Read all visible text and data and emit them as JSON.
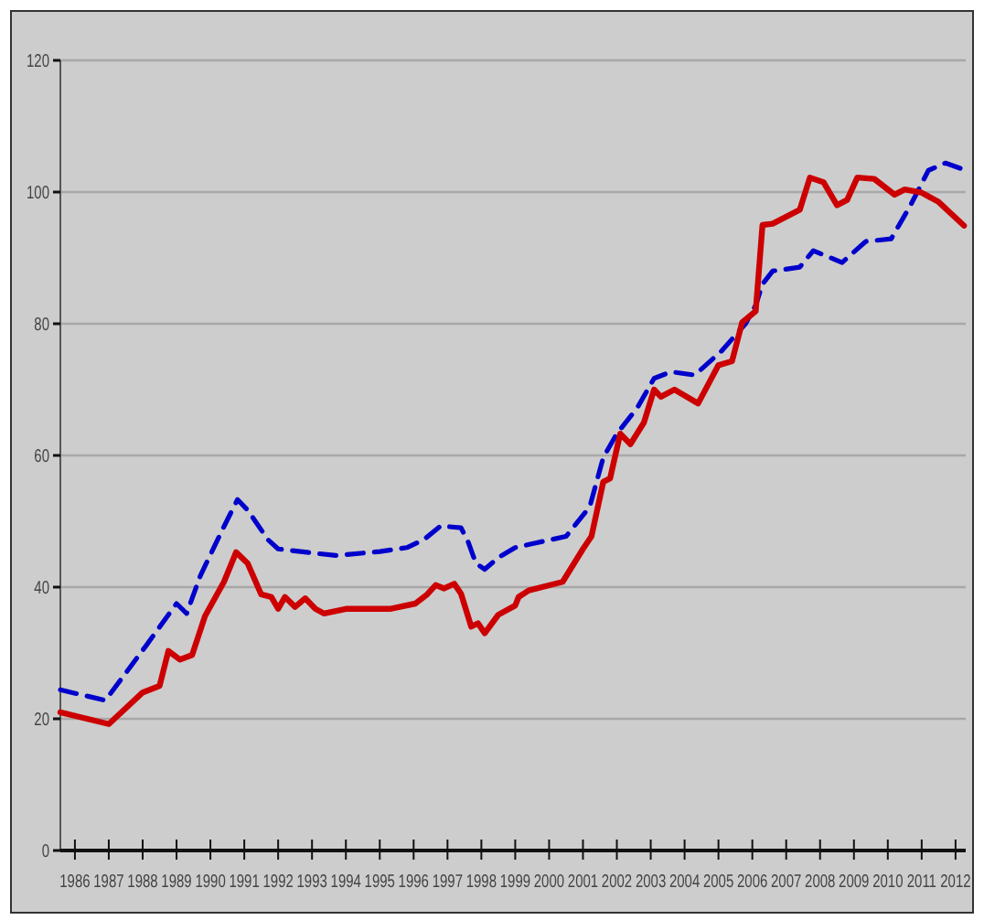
{
  "chart_data": {
    "type": "line",
    "xlim": [
      1985.57,
      2012.3
    ],
    "xticks": [
      1986,
      1987,
      1988,
      1989,
      1990,
      1991,
      1992,
      1993,
      1994,
      1995,
      1996,
      1997,
      1998,
      1999,
      2000,
      2001,
      2002,
      2003,
      2004,
      2005,
      2006,
      2007,
      2008,
      2009,
      2010,
      2011,
      2012
    ],
    "ylim": [
      0,
      120
    ],
    "yticks": [
      0,
      20,
      40,
      60,
      80,
      100,
      120
    ],
    "grid": "y",
    "marker": "none",
    "series": [
      {
        "color": "#0000cc",
        "line_style": "dashed",
        "x": [
          1985.57,
          1986.9,
          1988.1,
          1989.0,
          1989.3,
          1989.7,
          1990.4,
          1990.8,
          1991.1,
          1991.7,
          1992.0,
          1993.0,
          1993.7,
          1995.0,
          1995.8,
          1996.3,
          1996.8,
          1997.4,
          1997.6,
          1997.84,
          1998.1,
          1998.5,
          1999.0,
          1999.6,
          2000.5,
          2001.2,
          2001.6,
          2002.0,
          2002.6,
          2003.1,
          2003.6,
          2004.3,
          2005.1,
          2005.8,
          2006.1,
          2006.3,
          2006.6,
          2007.4,
          2007.8,
          2008.65,
          2009.35,
          2010.1,
          2010.65,
          2011.2,
          2011.7,
          2012.25
        ],
        "values": [
          24.4,
          22.8,
          31.1,
          37.5,
          36,
          41.7,
          49.2,
          53.3,
          51.7,
          47.2,
          45.8,
          45.2,
          44.8,
          45.4,
          46,
          47.2,
          49.3,
          49,
          47,
          43.6,
          42.7,
          44.5,
          46,
          46.7,
          47.7,
          52.2,
          59.7,
          63.3,
          67.2,
          71.7,
          72.7,
          72.2,
          75.9,
          80,
          82.8,
          86,
          88,
          88.6,
          91.1,
          89.3,
          92.5,
          92.9,
          97.8,
          103.3,
          104.4,
          103.4
        ]
      },
      {
        "color": "#cc0000",
        "line_style": "solid",
        "x": [
          1985.57,
          1987.0,
          1988.0,
          1988.5,
          1988.76,
          1989.1,
          1989.46,
          1989.84,
          1990.4,
          1990.76,
          1991.1,
          1991.5,
          1991.8,
          1992.0,
          1992.2,
          1992.5,
          1992.8,
          1993.1,
          1993.35,
          1994.0,
          1995.3,
          1996.05,
          1996.4,
          1996.65,
          1996.9,
          1997.2,
          1997.4,
          1997.7,
          1997.9,
          1998.1,
          1998.5,
          1999.0,
          1999.1,
          1999.4,
          2000.4,
          2001.0,
          2001.25,
          2001.6,
          2001.8,
          2002.1,
          2002.4,
          2002.8,
          2003.1,
          2003.3,
          2003.7,
          2004.4,
          2005.0,
          2005.4,
          2005.7,
          2006.1,
          2006.3,
          2006.6,
          2007.4,
          2007.7,
          2008.1,
          2008.5,
          2008.8,
          2009.1,
          2009.6,
          2010.2,
          2010.5,
          2011.0,
          2011.5,
          2012.25
        ],
        "values": [
          21,
          19.2,
          24,
          25,
          30.3,
          29,
          29.7,
          35.6,
          40.8,
          45.3,
          43.6,
          38.9,
          38.5,
          36.7,
          38.5,
          37,
          38.3,
          36.7,
          36,
          36.7,
          36.7,
          37.5,
          38.9,
          40.3,
          39.8,
          40.5,
          39,
          34,
          34.5,
          33,
          35.8,
          37.2,
          38.5,
          39.5,
          40.8,
          45.8,
          47.7,
          56,
          56.5,
          63.3,
          61.7,
          65,
          70,
          68.9,
          70,
          67.9,
          73.7,
          74.3,
          80.2,
          81.9,
          95,
          95.2,
          97.3,
          102.2,
          101.5,
          98,
          98.8,
          102.2,
          102,
          99.6,
          100.4,
          99.9,
          98.5,
          94.9
        ]
      }
    ]
  }
}
